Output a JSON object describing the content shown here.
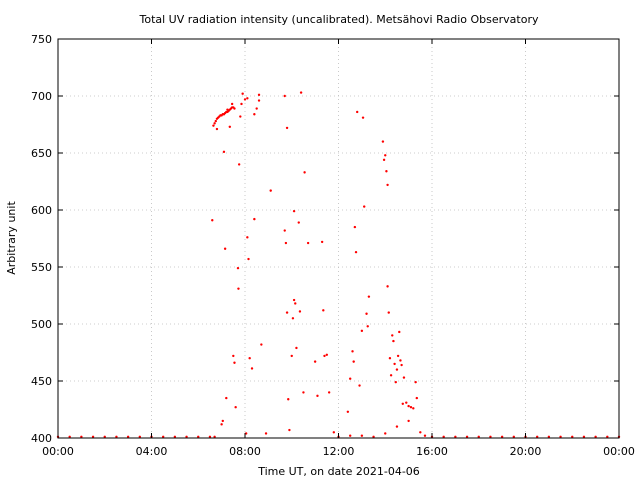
{
  "chart_data": {
    "type": "scatter",
    "title": "Total UV radiation intensity (uncalibrated). Metsähovi Radio Observatory",
    "xlabel": "Time UT, on date 2021-04-06",
    "ylabel": "Arbitrary unit",
    "xlim": [
      0,
      24
    ],
    "ylim": [
      400,
      750
    ],
    "x_unit": "hours UT",
    "xticks": [
      0,
      4,
      8,
      12,
      16,
      20,
      24
    ],
    "xtick_labels": [
      "00:00",
      "04:00",
      "08:00",
      "12:00",
      "16:00",
      "20:00",
      "00:00"
    ],
    "yticks": [
      400,
      450,
      500,
      550,
      600,
      650,
      700,
      750
    ],
    "ytick_labels": [
      "400",
      "450",
      "500",
      "550",
      "600",
      "650",
      "700",
      "750"
    ],
    "grid": true,
    "legend": "none",
    "marker_color": "#ff0000",
    "series": [
      {
        "points": [
          [
            0.0,
            401
          ],
          [
            0.5,
            401
          ],
          [
            1.0,
            401
          ],
          [
            1.5,
            401
          ],
          [
            2.0,
            401
          ],
          [
            2.5,
            401
          ],
          [
            3.0,
            401
          ],
          [
            3.5,
            401
          ],
          [
            4.0,
            401
          ],
          [
            4.5,
            401
          ],
          [
            5.0,
            401
          ],
          [
            5.5,
            401
          ],
          [
            6.0,
            401
          ],
          [
            6.5,
            401
          ],
          [
            6.7,
            401
          ],
          [
            6.6,
            591
          ],
          [
            6.65,
            674
          ],
          [
            6.7,
            676
          ],
          [
            6.75,
            678
          ],
          [
            6.8,
            680
          ],
          [
            6.85,
            681
          ],
          [
            6.9,
            682
          ],
          [
            6.95,
            683
          ],
          [
            7.0,
            683
          ],
          [
            7.05,
            684
          ],
          [
            7.1,
            684
          ],
          [
            7.15,
            685
          ],
          [
            7.2,
            686
          ],
          [
            7.25,
            686
          ],
          [
            7.3,
            687
          ],
          [
            7.35,
            688
          ],
          [
            7.4,
            689
          ],
          [
            7.45,
            690
          ],
          [
            7.5,
            690
          ],
          [
            7.55,
            689
          ],
          [
            6.8,
            671
          ],
          [
            7.0,
            412
          ],
          [
            7.05,
            415
          ],
          [
            7.1,
            651
          ],
          [
            7.15,
            566
          ],
          [
            7.2,
            435
          ],
          [
            7.25,
            688
          ],
          [
            7.35,
            673
          ],
          [
            7.45,
            693
          ],
          [
            7.5,
            472
          ],
          [
            7.55,
            466
          ],
          [
            7.6,
            427
          ],
          [
            7.7,
            549
          ],
          [
            7.72,
            531
          ],
          [
            7.75,
            640
          ],
          [
            7.8,
            682
          ],
          [
            7.85,
            693
          ],
          [
            7.9,
            702
          ],
          [
            8.0,
            697
          ],
          [
            8.1,
            698
          ],
          [
            8.05,
            404
          ],
          [
            8.1,
            576
          ],
          [
            8.15,
            557
          ],
          [
            8.2,
            470
          ],
          [
            8.3,
            461
          ],
          [
            8.4,
            592
          ],
          [
            8.4,
            684
          ],
          [
            8.5,
            689
          ],
          [
            8.6,
            701
          ],
          [
            8.6,
            696
          ],
          [
            8.7,
            482
          ],
          [
            8.9,
            404
          ],
          [
            9.1,
            617
          ],
          [
            9.7,
            700
          ],
          [
            9.8,
            672
          ],
          [
            9.7,
            582
          ],
          [
            9.75,
            571
          ],
          [
            9.8,
            510
          ],
          [
            9.85,
            434
          ],
          [
            9.9,
            407
          ],
          [
            10.0,
            472
          ],
          [
            10.05,
            505
          ],
          [
            10.1,
            599
          ],
          [
            10.1,
            521
          ],
          [
            10.15,
            518
          ],
          [
            10.2,
            479
          ],
          [
            10.3,
            589
          ],
          [
            10.35,
            511
          ],
          [
            10.4,
            703
          ],
          [
            10.5,
            440
          ],
          [
            10.55,
            633
          ],
          [
            10.7,
            571
          ],
          [
            11.0,
            467
          ],
          [
            11.1,
            437
          ],
          [
            11.3,
            572
          ],
          [
            11.35,
            512
          ],
          [
            11.4,
            472
          ],
          [
            11.5,
            473
          ],
          [
            11.6,
            440
          ],
          [
            11.8,
            405
          ],
          [
            12.4,
            423
          ],
          [
            12.5,
            452
          ],
          [
            12.6,
            476
          ],
          [
            12.65,
            467
          ],
          [
            12.7,
            585
          ],
          [
            12.75,
            563
          ],
          [
            12.8,
            686
          ],
          [
            12.9,
            446
          ],
          [
            13.0,
            494
          ],
          [
            13.05,
            681
          ],
          [
            13.1,
            603
          ],
          [
            13.2,
            509
          ],
          [
            13.25,
            498
          ],
          [
            13.3,
            524
          ],
          [
            13.9,
            660
          ],
          [
            13.95,
            644
          ],
          [
            14.0,
            648
          ],
          [
            14.05,
            634
          ],
          [
            14.1,
            622
          ],
          [
            14.1,
            533
          ],
          [
            14.15,
            510
          ],
          [
            14.2,
            470
          ],
          [
            14.25,
            455
          ],
          [
            14.3,
            490
          ],
          [
            14.35,
            485
          ],
          [
            14.4,
            465
          ],
          [
            14.45,
            449
          ],
          [
            14.5,
            460
          ],
          [
            14.55,
            472
          ],
          [
            14.6,
            493
          ],
          [
            14.65,
            468
          ],
          [
            14.7,
            464
          ],
          [
            14.75,
            430
          ],
          [
            14.8,
            453
          ],
          [
            14.9,
            431
          ],
          [
            15.0,
            428
          ],
          [
            15.1,
            427
          ],
          [
            15.2,
            426
          ],
          [
            15.3,
            449
          ],
          [
            15.35,
            435
          ],
          [
            12.0,
            401
          ],
          [
            12.5,
            402
          ],
          [
            13.0,
            402
          ],
          [
            13.5,
            401
          ],
          [
            14.0,
            404
          ],
          [
            14.5,
            410
          ],
          [
            15.0,
            415
          ],
          [
            15.5,
            405
          ],
          [
            15.7,
            402
          ],
          [
            16.0,
            401
          ],
          [
            16.5,
            401
          ],
          [
            17.0,
            401
          ],
          [
            17.5,
            401
          ],
          [
            18.0,
            401
          ],
          [
            18.5,
            401
          ],
          [
            19.0,
            401
          ],
          [
            19.5,
            401
          ],
          [
            20.0,
            401
          ],
          [
            20.5,
            401
          ],
          [
            21.0,
            401
          ],
          [
            21.5,
            401
          ],
          [
            22.0,
            401
          ],
          [
            22.5,
            401
          ],
          [
            23.0,
            401
          ],
          [
            23.5,
            401
          ],
          [
            24.0,
            401
          ]
        ]
      }
    ]
  }
}
